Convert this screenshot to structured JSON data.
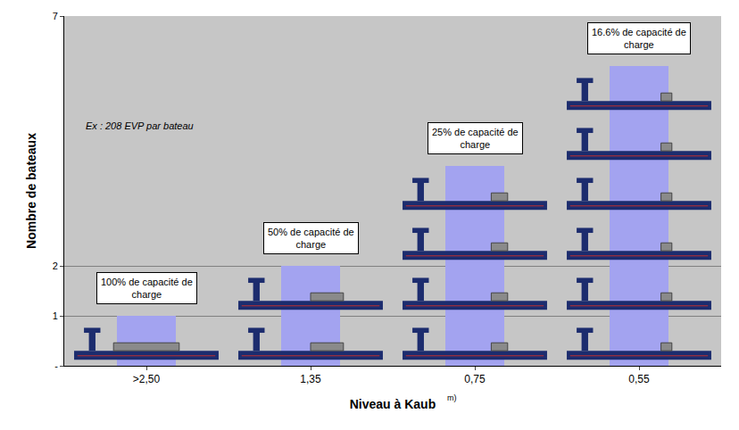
{
  "chart_data": {
    "type": "bar",
    "x_label": "Niveau à Kaub",
    "x_unit_note": "m)",
    "y_label": "Nombre de bateaux",
    "categories": [
      ">2,50",
      "1,35",
      "0,75",
      "0,55"
    ],
    "values": [
      1,
      2,
      4,
      6
    ],
    "load_percent": [
      100,
      50,
      25,
      16.6
    ],
    "capacity_labels": [
      "100% de capacité de charge",
      "50% de capacité de charge",
      "25% de capacité de charge",
      "16.6% de capacité de charge"
    ],
    "annotation": "Ex : 208 EVP par bateau",
    "color": "#a3a3f0",
    "ylim": [
      0,
      7
    ],
    "yticks": [
      {
        "value": 0,
        "label": "-"
      },
      1,
      2,
      7
    ],
    "grid": true
  }
}
